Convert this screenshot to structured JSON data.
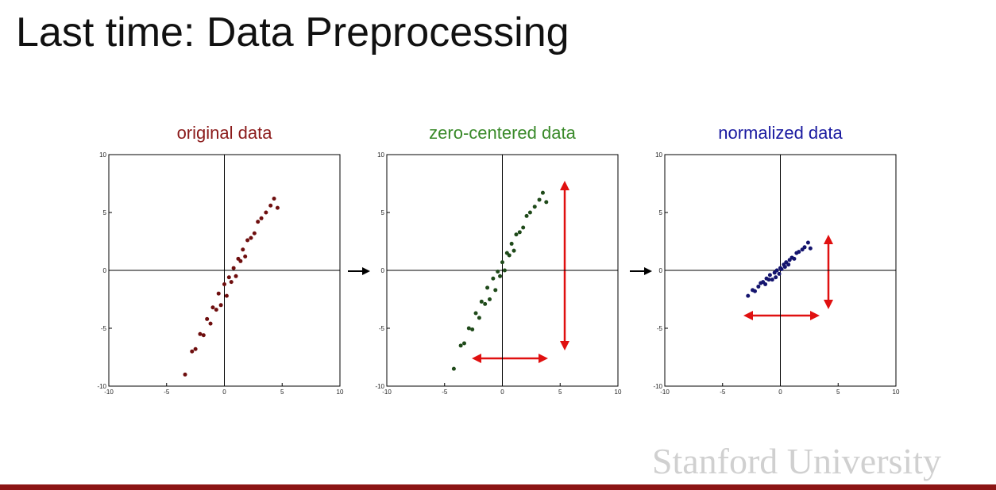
{
  "title": "Last time: Data Preprocessing",
  "logo": "Stanford University",
  "chart_data": [
    {
      "type": "scatter",
      "title": "original data",
      "title_color": "#8b1a1a",
      "xlim": [
        -10,
        10
      ],
      "ylim": [
        -10,
        10
      ],
      "xticks": [
        -10,
        -5,
        0,
        5,
        10
      ],
      "yticks": [
        -10,
        -5,
        0,
        5,
        10
      ],
      "series": [
        {
          "color": "#6e0e0e",
          "x": [
            -3.4,
            -2.8,
            -2.5,
            -2.1,
            -1.8,
            -1.5,
            -1.2,
            -1.0,
            -0.7,
            -0.5,
            -0.3,
            0,
            0.2,
            0.4,
            0.6,
            0.8,
            1.0,
            1.2,
            1.4,
            1.6,
            1.8,
            2.0,
            2.3,
            2.6,
            2.9,
            3.2,
            3.6,
            4.0,
            4.3,
            4.6
          ],
          "y": [
            -9.0,
            -7.0,
            -6.8,
            -5.5,
            -5.6,
            -4.2,
            -4.6,
            -3.2,
            -3.4,
            -2.0,
            -3.0,
            -1.2,
            -2.2,
            -0.6,
            -1.0,
            0.2,
            -0.5,
            1.0,
            0.8,
            1.8,
            1.2,
            2.6,
            2.8,
            3.2,
            4.2,
            4.5,
            5.0,
            5.6,
            6.2,
            5.4
          ]
        }
      ]
    },
    {
      "type": "scatter",
      "title": "zero-centered data",
      "title_color": "#3a8a2a",
      "xlim": [
        -10,
        10
      ],
      "ylim": [
        -10,
        10
      ],
      "xticks": [
        -10,
        -5,
        0,
        5,
        10
      ],
      "yticks": [
        -10,
        -5,
        0,
        5,
        10
      ],
      "series": [
        {
          "color": "#1f4a1a",
          "x": [
            -4.2,
            -3.6,
            -3.3,
            -2.9,
            -2.6,
            -2.3,
            -2.0,
            -1.8,
            -1.5,
            -1.3,
            -1.1,
            -0.8,
            -0.6,
            -0.4,
            -0.2,
            0,
            0.2,
            0.4,
            0.6,
            0.8,
            1.0,
            1.2,
            1.5,
            1.8,
            2.1,
            2.4,
            2.8,
            3.2,
            3.5,
            3.8
          ],
          "y": [
            -8.5,
            -6.5,
            -6.3,
            -5.0,
            -5.1,
            -3.7,
            -4.1,
            -2.7,
            -2.9,
            -1.5,
            -2.5,
            -0.7,
            -1.7,
            -0.1,
            -0.5,
            0.7,
            0,
            1.5,
            1.3,
            2.3,
            1.7,
            3.1,
            3.3,
            3.7,
            4.7,
            5.0,
            5.5,
            6.1,
            6.7,
            5.9
          ]
        }
      ]
    },
    {
      "type": "scatter",
      "title": "normalized data",
      "title_color": "#1a1aa0",
      "xlim": [
        -10,
        10
      ],
      "ylim": [
        -10,
        10
      ],
      "xticks": [
        -10,
        -5,
        0,
        5,
        10
      ],
      "yticks": [
        -10,
        -5,
        0,
        5,
        10
      ],
      "series": [
        {
          "color": "#14146e",
          "x": [
            -2.8,
            -2.4,
            -2.2,
            -1.9,
            -1.7,
            -1.5,
            -1.3,
            -1.2,
            -1.0,
            -0.9,
            -0.7,
            -0.5,
            -0.4,
            -0.3,
            -0.1,
            0,
            0.1,
            0.3,
            0.4,
            0.5,
            0.7,
            0.8,
            1.0,
            1.2,
            1.4,
            1.6,
            1.9,
            2.1,
            2.4,
            2.6
          ],
          "y": [
            -2.2,
            -1.7,
            -1.8,
            -1.4,
            -1.1,
            -1.0,
            -1.2,
            -0.7,
            -0.8,
            -0.4,
            -0.8,
            -0.2,
            -0.6,
            0,
            -0.3,
            0.2,
            0.1,
            0.5,
            0.3,
            0.7,
            0.5,
            0.9,
            1.1,
            1.0,
            1.5,
            1.6,
            1.8,
            2.0,
            2.4,
            1.9
          ]
        }
      ]
    }
  ]
}
